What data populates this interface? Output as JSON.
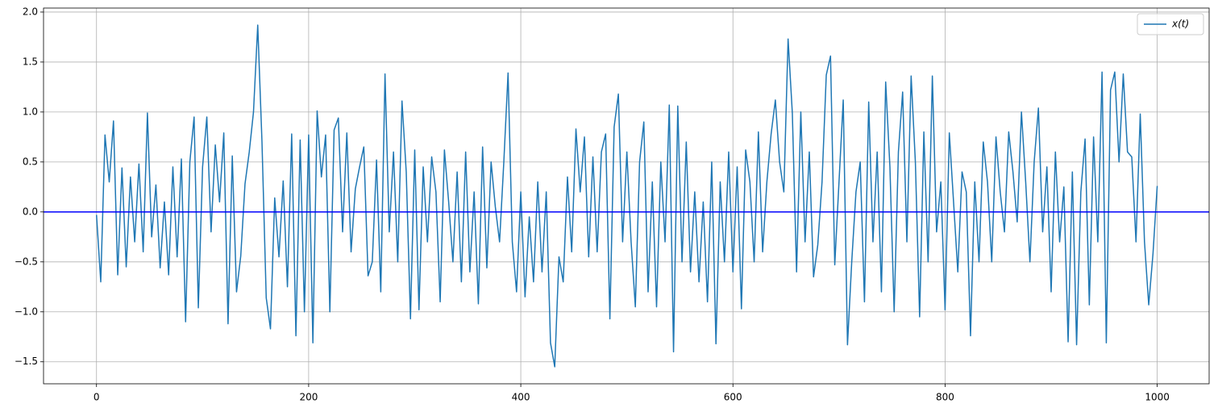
{
  "chart_data": {
    "type": "line",
    "x": [
      0,
      4,
      8,
      12,
      16,
      20,
      24,
      28,
      32,
      36,
      40,
      44,
      48,
      52,
      56,
      60,
      64,
      68,
      72,
      76,
      80,
      84,
      88,
      92,
      96,
      100,
      104,
      108,
      112,
      116,
      120,
      124,
      128,
      132,
      136,
      140,
      144,
      148,
      152,
      156,
      160,
      164,
      168,
      172,
      176,
      180,
      184,
      188,
      192,
      196,
      200,
      204,
      208,
      212,
      216,
      220,
      224,
      228,
      232,
      236,
      240,
      244,
      248,
      252,
      256,
      260,
      264,
      268,
      272,
      276,
      280,
      284,
      288,
      292,
      296,
      300,
      304,
      308,
      312,
      316,
      320,
      324,
      328,
      332,
      336,
      340,
      344,
      348,
      352,
      356,
      360,
      364,
      368,
      372,
      376,
      380,
      384,
      388,
      392,
      396,
      400,
      404,
      408,
      412,
      416,
      420,
      424,
      428,
      432,
      436,
      440,
      444,
      448,
      452,
      456,
      460,
      464,
      468,
      472,
      476,
      480,
      484,
      488,
      492,
      496,
      500,
      504,
      508,
      512,
      516,
      520,
      524,
      528,
      532,
      536,
      540,
      544,
      548,
      552,
      556,
      560,
      564,
      568,
      572,
      576,
      580,
      584,
      588,
      592,
      596,
      600,
      604,
      608,
      612,
      616,
      620,
      624,
      628,
      632,
      636,
      640,
      644,
      648,
      652,
      656,
      660,
      664,
      668,
      672,
      676,
      680,
      684,
      688,
      692,
      696,
      700,
      704,
      708,
      712,
      716,
      720,
      724,
      728,
      732,
      736,
      740,
      744,
      748,
      752,
      756,
      760,
      764,
      768,
      772,
      776,
      780,
      784,
      788,
      792,
      796,
      800,
      804,
      808,
      812,
      816,
      820,
      824,
      828,
      832,
      836,
      840,
      844,
      848,
      852,
      856,
      860,
      864,
      868,
      872,
      876,
      880,
      884,
      888,
      892,
      896,
      900,
      904,
      908,
      912,
      916,
      920,
      924,
      928,
      932,
      936,
      940,
      944,
      948,
      952,
      956,
      960,
      964,
      968,
      972,
      976,
      980,
      984,
      988,
      992,
      996,
      1000
    ],
    "series": [
      {
        "name": "x(t)",
        "color": "#1f77b4",
        "values": [
          -0.03,
          -0.7,
          0.77,
          0.3,
          0.91,
          -0.63,
          0.44,
          -0.55,
          0.35,
          -0.3,
          0.48,
          -0.4,
          0.99,
          -0.25,
          0.27,
          -0.56,
          0.1,
          -0.63,
          0.45,
          -0.45,
          0.53,
          -1.1,
          0.5,
          0.95,
          -0.96,
          0.45,
          0.95,
          -0.2,
          0.67,
          0.1,
          0.79,
          -1.12,
          0.56,
          -0.8,
          -0.44,
          0.28,
          0.6,
          1.0,
          1.87,
          0.7,
          -0.86,
          -1.17,
          0.14,
          -0.45,
          0.31,
          -0.75,
          0.78,
          -1.24,
          0.72,
          -1.0,
          0.77,
          -1.31,
          1.01,
          0.35,
          0.77,
          -1.0,
          0.82,
          0.94,
          -0.2,
          0.79,
          -0.4,
          0.23,
          0.45,
          0.65,
          -0.64,
          -0.5,
          0.52,
          -0.8,
          1.38,
          -0.2,
          0.6,
          -0.5,
          1.11,
          0.4,
          -1.07,
          0.62,
          -0.98,
          0.45,
          -0.3,
          0.55,
          0.2,
          -0.9,
          0.62,
          0.1,
          -0.5,
          0.4,
          -0.7,
          0.6,
          -0.6,
          0.2,
          -0.92,
          0.65,
          -0.56,
          0.5,
          0.05,
          -0.3,
          0.5,
          1.39,
          -0.3,
          -0.8,
          0.2,
          -0.85,
          -0.05,
          -0.7,
          0.3,
          -0.6,
          0.2,
          -1.31,
          -1.55,
          -0.45,
          -0.7,
          0.35,
          -0.4,
          0.83,
          0.2,
          0.75,
          -0.45,
          0.55,
          -0.4,
          0.6,
          0.78,
          -1.07,
          0.85,
          1.18,
          -0.3,
          0.6,
          -0.3,
          -0.95,
          0.5,
          0.9,
          -0.8,
          0.3,
          -0.95,
          0.5,
          -0.3,
          1.07,
          -1.4,
          1.06,
          -0.5,
          0.7,
          -0.6,
          0.2,
          -0.7,
          0.1,
          -0.9,
          0.5,
          -1.32,
          0.3,
          -0.5,
          0.6,
          -0.6,
          0.45,
          -0.97,
          0.62,
          0.3,
          -0.5,
          0.8,
          -0.4,
          0.3,
          0.78,
          1.12,
          0.5,
          0.2,
          1.73,
          0.99,
          -0.6,
          1.0,
          -0.3,
          0.6,
          -0.65,
          -0.33,
          0.3,
          1.37,
          1.56,
          -0.53,
          0.3,
          1.12,
          -1.33,
          -0.5,
          0.2,
          0.5,
          -0.9,
          1.1,
          -0.3,
          0.6,
          -0.8,
          1.3,
          0.45,
          -1.0,
          0.6,
          1.2,
          -0.3,
          1.36,
          0.5,
          -1.05,
          0.8,
          -0.5,
          1.36,
          -0.2,
          0.3,
          -0.98,
          0.79,
          0.1,
          -0.6,
          0.4,
          0.2,
          -1.24,
          0.3,
          -0.5,
          0.7,
          0.3,
          -0.5,
          0.75,
          0.2,
          -0.2,
          0.8,
          0.4,
          -0.1,
          1.0,
          0.3,
          -0.5,
          0.5,
          1.04,
          -0.2,
          0.45,
          -0.8,
          0.6,
          -0.3,
          0.25,
          -1.3,
          0.4,
          -1.33,
          0.2,
          0.73,
          -0.93,
          0.75,
          -0.3,
          1.4,
          -1.31,
          1.22,
          1.4,
          0.5,
          1.38,
          0.6,
          0.55,
          -0.3,
          0.98,
          -0.3,
          -0.93,
          -0.42,
          0.26
        ]
      }
    ],
    "hline": {
      "value": 0,
      "color": "#0000ff"
    },
    "xlim": [
      -49.95,
      1048.95
    ],
    "xticks": [
      0,
      200,
      400,
      600,
      800,
      1000
    ],
    "ylim": [
      -1.72,
      2.04
    ],
    "yticks": [
      {
        "value": -1.5,
        "label": "−1.5"
      },
      {
        "value": -1,
        "label": "−1.0"
      },
      {
        "value": -0.5,
        "label": "−0.5"
      },
      {
        "value": 0,
        "label": "0.0"
      },
      {
        "value": 0.5,
        "label": "0.5"
      },
      {
        "value": 1,
        "label": "1.0"
      },
      {
        "value": 1.5,
        "label": "1.5"
      },
      {
        "value": 2,
        "label": "2.0"
      }
    ],
    "grid": true,
    "legend": "upper right"
  }
}
